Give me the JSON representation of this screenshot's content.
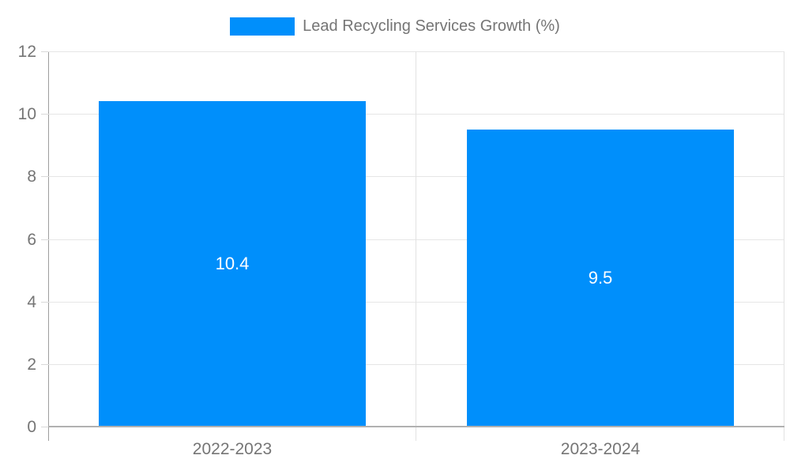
{
  "legend": {
    "label": "Lead Recycling Services Growth (%)",
    "swatch_color": "#008FFB"
  },
  "chart_data": {
    "type": "bar",
    "title": "Lead Recycling Services Growth (%)",
    "categories": [
      "2022-2023",
      "2023-2024"
    ],
    "values": [
      10.4,
      9.5
    ],
    "value_labels": [
      "10.4",
      "9.5"
    ],
    "xlabel": "",
    "ylabel": "",
    "ylim": [
      0,
      12
    ],
    "yticks": [
      0,
      2,
      4,
      6,
      8,
      10,
      12
    ],
    "ytick_labels": [
      "0",
      "2",
      "4",
      "6",
      "8",
      "10",
      "12"
    ],
    "grid": true,
    "legend_position": "top-center",
    "colors": {
      "bar": "#008FFB",
      "bar_value_text": "#ffffff",
      "axis_text": "#757575",
      "gridline": "#e6e6e6",
      "axis_line": "#9e9e9e",
      "baseline": "#b1b1b1"
    }
  }
}
